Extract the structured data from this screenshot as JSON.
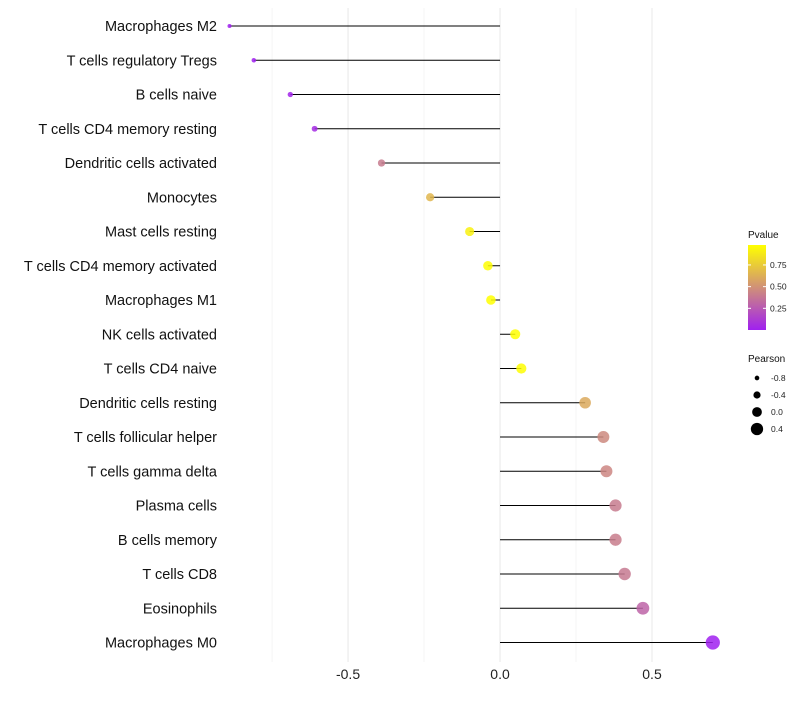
{
  "chart_data": {
    "type": "lollipop",
    "title": "",
    "xlabel": "",
    "ylabel": "",
    "xlim": [
      -0.895,
      0.75
    ],
    "xticks": [
      -0.5,
      0.0,
      0.5
    ],
    "xtick_labels": [
      "-0.5",
      "0.0",
      "0.5"
    ],
    "minor_gridlines": [
      -0.75,
      -0.25,
      0.25
    ],
    "grid": true,
    "categories": [
      "Macrophages M2",
      "T cells regulatory  Tregs",
      "B cells naive",
      "T cells CD4 memory resting",
      "Dendritic cells activated",
      "Monocytes",
      "Mast cells resting",
      "T cells CD4 memory activated",
      "Macrophages M1",
      "NK cells activated",
      "T cells CD4 naive",
      "Dendritic cells resting",
      "T cells follicular helper",
      "T cells gamma delta",
      "Plasma cells",
      "B cells memory",
      "T cells CD8",
      "Eosinophils",
      "Macrophages M0"
    ],
    "pearson": [
      -0.89,
      -0.81,
      -0.69,
      -0.61,
      -0.39,
      -0.23,
      -0.1,
      -0.04,
      -0.03,
      0.05,
      0.07,
      0.28,
      0.34,
      0.35,
      0.38,
      0.38,
      0.41,
      0.47,
      0.7
    ],
    "pvalue": [
      0.0,
      0.0,
      0.02,
      0.05,
      0.4,
      0.66,
      0.92,
      0.97,
      0.98,
      0.99,
      0.97,
      0.6,
      0.46,
      0.45,
      0.4,
      0.41,
      0.39,
      0.3,
      0.0
    ],
    "legend": {
      "position": "right",
      "color": {
        "title": "Pvalue",
        "ticks": [
          0.25,
          0.5,
          0.75
        ],
        "tick_labels": [
          "0.25",
          "0.50",
          "0.75"
        ],
        "range": [
          0.0,
          0.98
        ],
        "low_color": "#a020f0",
        "high_color": "#ffff00"
      },
      "size": {
        "title": "Pearson",
        "values": [
          -0.8,
          -0.4,
          0.0,
          0.4
        ],
        "labels": [
          "-0.8",
          "-0.4",
          "0.0",
          "0.4"
        ]
      }
    }
  }
}
